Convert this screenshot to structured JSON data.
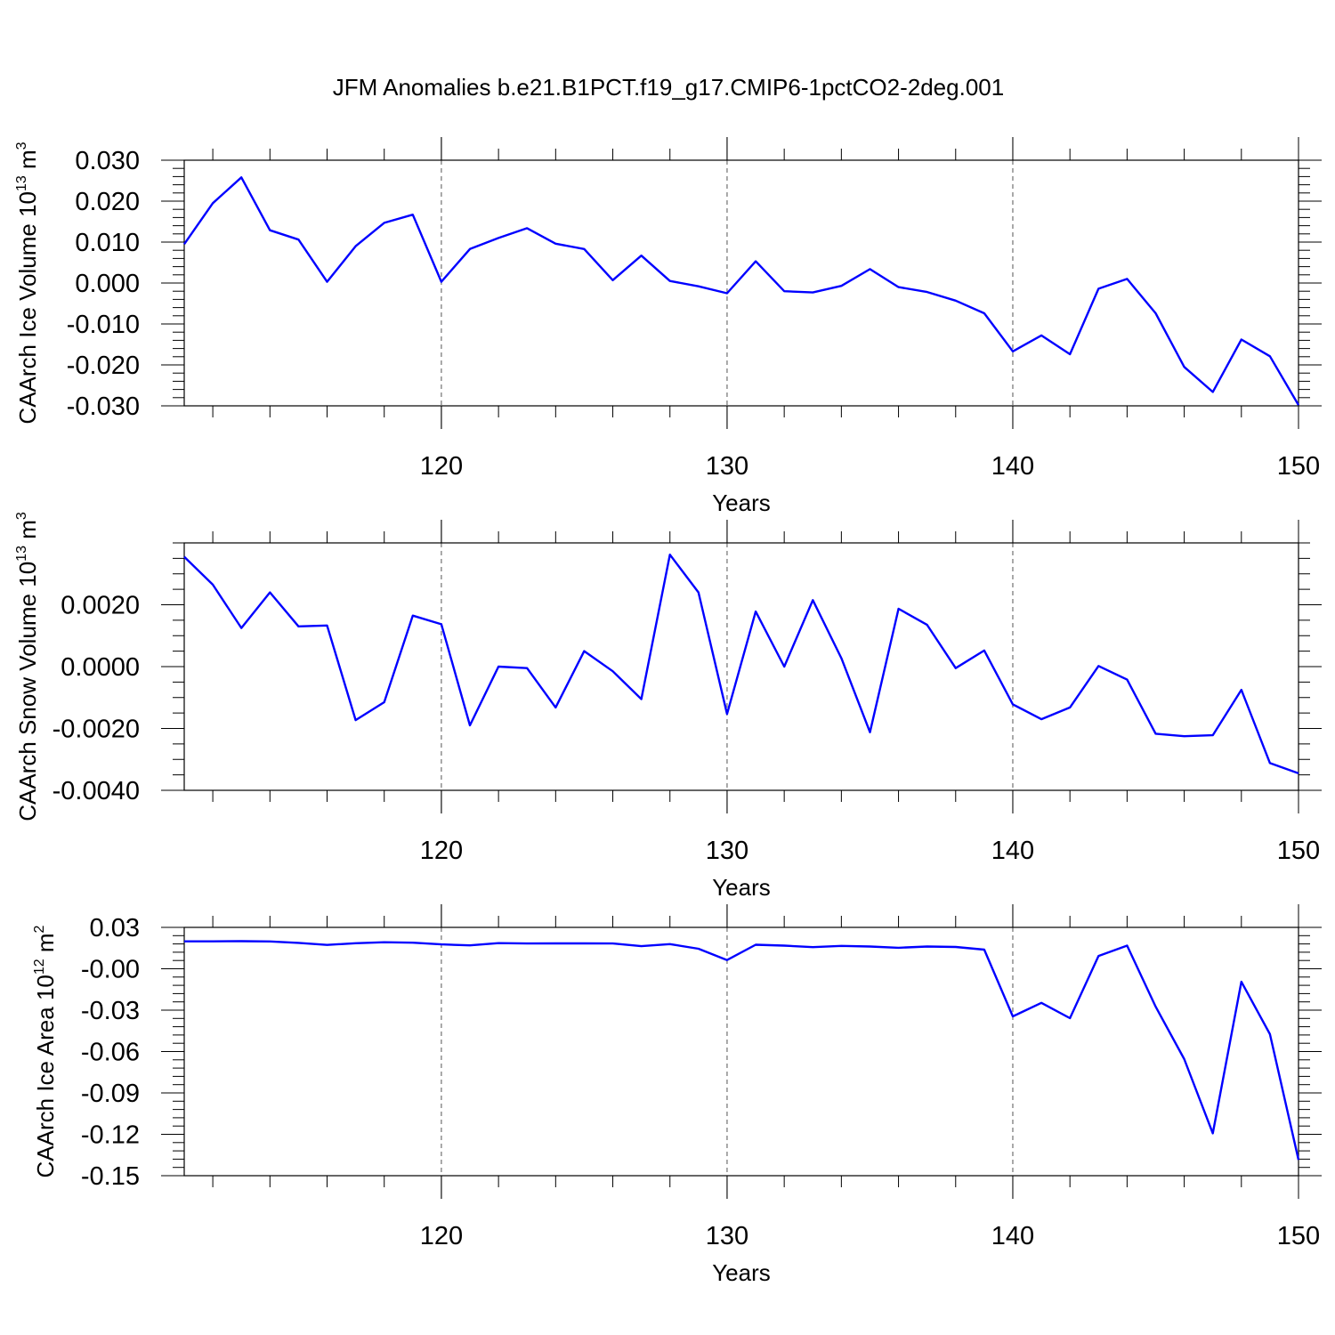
{
  "title": "JFM Anomalies b.e21.B1PCT.f19_g17.CMIP6-1pctCO2-2deg.001",
  "chart_data": [
    {
      "type": "line",
      "ylabel_main": "CAArch Ice Volume 10",
      "ylabel_exp": "13",
      "ylabel_unit": "m",
      "ylabel_unit_exp": "3",
      "xlabel": "Years",
      "xlim": [
        111,
        150
      ],
      "ylim": [
        -0.03,
        0.03
      ],
      "xticks": [
        "120",
        "130",
        "140",
        "150"
      ],
      "yticks": [
        "0.030",
        "0.020",
        "0.010",
        "0.000",
        "-0.010",
        "-0.020",
        "-0.030"
      ],
      "ytick_values": [
        0.03,
        0.02,
        0.01,
        0.0,
        -0.01,
        -0.02,
        -0.03
      ],
      "x": [
        111,
        112,
        113,
        114,
        115,
        116,
        117,
        118,
        119,
        120,
        121,
        122,
        123,
        124,
        125,
        126,
        127,
        128,
        129,
        130,
        131,
        132,
        133,
        134,
        135,
        136,
        137,
        138,
        139,
        140,
        141,
        142,
        143,
        144,
        145,
        146,
        147,
        148,
        149,
        150
      ],
      "values": [
        0.0095,
        0.0195,
        0.0258,
        0.0129,
        0.0106,
        0.0003,
        0.009,
        0.0147,
        0.0167,
        0.0003,
        0.0083,
        0.011,
        0.0134,
        0.0096,
        0.0083,
        0.0007,
        0.0067,
        0.0005,
        -0.0008,
        -0.0025,
        0.0053,
        -0.002,
        -0.0023,
        -0.0007,
        0.0034,
        -0.001,
        -0.0022,
        -0.0043,
        -0.0074,
        -0.0167,
        -0.0128,
        -0.0174,
        -0.0014,
        0.001,
        -0.0074,
        -0.0205,
        -0.0266,
        -0.0138,
        -0.0179,
        -0.0298
      ]
    },
    {
      "type": "line",
      "ylabel_main": "CAArch Snow Volume 10",
      "ylabel_exp": "13",
      "ylabel_unit": "m",
      "ylabel_unit_exp": "3",
      "xlabel": "Years",
      "xlim": [
        111,
        150
      ],
      "ylim": [
        -0.004,
        0.004
      ],
      "xticks": [
        "120",
        "130",
        "140",
        "150"
      ],
      "yticks": [
        "0.0020",
        "0.0000",
        "-0.0020",
        "-0.0040"
      ],
      "ytick_values": [
        0.002,
        0.0,
        -0.002,
        -0.004
      ],
      "x": [
        111,
        112,
        113,
        114,
        115,
        116,
        117,
        118,
        119,
        120,
        121,
        122,
        123,
        124,
        125,
        126,
        127,
        128,
        129,
        130,
        131,
        132,
        133,
        134,
        135,
        136,
        137,
        138,
        139,
        140,
        141,
        142,
        143,
        144,
        145,
        146,
        147,
        148,
        149,
        150
      ],
      "values": [
        0.00355,
        0.00265,
        0.00125,
        0.0024,
        0.0013,
        0.00133,
        -0.00173,
        -0.00115,
        0.00165,
        0.00137,
        -0.0019,
        0.0,
        -5e-05,
        -0.00132,
        0.0005,
        -0.00015,
        -0.00105,
        0.00362,
        0.0024,
        -0.00153,
        0.00178,
        0.0,
        0.00215,
        0.00027,
        -0.00212,
        0.00187,
        0.00135,
        -5e-05,
        0.00052,
        -0.00122,
        -0.0017,
        -0.00132,
        2e-05,
        -0.00042,
        -0.00217,
        -0.00225,
        -0.00222,
        -0.00075,
        -0.00312,
        -0.00345
      ]
    },
    {
      "type": "line",
      "ylabel_main": "CAArch Ice Area 10",
      "ylabel_exp": "12",
      "ylabel_unit": "m",
      "ylabel_unit_exp": "2",
      "xlabel": "Years",
      "xlim": [
        111,
        150
      ],
      "ylim": [
        -0.15,
        0.03
      ],
      "xticks": [
        "120",
        "130",
        "140",
        "150"
      ],
      "yticks": [
        "0.03",
        "-0.00",
        "-0.03",
        "-0.06",
        "-0.09",
        "-0.12",
        "-0.15"
      ],
      "ytick_values": [
        0.03,
        0.0,
        -0.03,
        -0.06,
        -0.09,
        -0.12,
        -0.15
      ],
      "x": [
        111,
        112,
        113,
        114,
        115,
        116,
        117,
        118,
        119,
        120,
        121,
        122,
        123,
        124,
        125,
        126,
        127,
        128,
        129,
        130,
        131,
        132,
        133,
        134,
        135,
        136,
        137,
        138,
        139,
        140,
        141,
        142,
        143,
        144,
        145,
        146,
        147,
        148,
        149,
        150
      ],
      "values": [
        0.0199,
        0.0199,
        0.02,
        0.0198,
        0.0188,
        0.0173,
        0.0185,
        0.0192,
        0.0189,
        0.0177,
        0.017,
        0.0186,
        0.0183,
        0.0184,
        0.0184,
        0.0183,
        0.0164,
        0.0179,
        0.0145,
        0.0063,
        0.0174,
        0.0168,
        0.0157,
        0.0166,
        0.0161,
        0.0152,
        0.0161,
        0.0158,
        0.0139,
        -0.0345,
        -0.0247,
        -0.0358,
        0.0093,
        0.0168,
        -0.0275,
        -0.0655,
        -0.1193,
        -0.0094,
        -0.0474,
        -0.1385
      ]
    }
  ]
}
